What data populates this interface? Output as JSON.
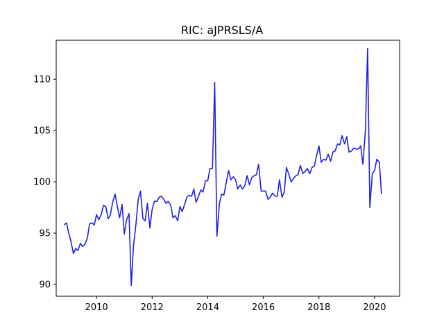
{
  "chart_data": {
    "type": "line",
    "title": "RIC: aJPRSLS/A",
    "xlabel": "",
    "ylabel": "",
    "xlim": [
      2008.55,
      2020.9
    ],
    "ylim": [
      88.85,
      113.8
    ],
    "xticks": [
      2010,
      2012,
      2014,
      2016,
      2018,
      2020
    ],
    "yticks": [
      90,
      95,
      100,
      105,
      110
    ],
    "grid": false,
    "series": [
      {
        "color": "#1f1fe6",
        "x": [
          2008.83,
          2008.92,
          2009.0,
          2009.08,
          2009.17,
          2009.25,
          2009.33,
          2009.42,
          2009.5,
          2009.58,
          2009.67,
          2009.75,
          2009.83,
          2009.92,
          2010.0,
          2010.08,
          2010.17,
          2010.25,
          2010.33,
          2010.42,
          2010.5,
          2010.58,
          2010.67,
          2010.75,
          2010.83,
          2010.92,
          2011.0,
          2011.08,
          2011.17,
          2011.25,
          2011.33,
          2011.42,
          2011.5,
          2011.58,
          2011.67,
          2011.75,
          2011.83,
          2011.92,
          2012.0,
          2012.08,
          2012.17,
          2012.25,
          2012.33,
          2012.42,
          2012.5,
          2012.58,
          2012.67,
          2012.75,
          2012.83,
          2012.92,
          2013.0,
          2013.08,
          2013.17,
          2013.25,
          2013.33,
          2013.42,
          2013.5,
          2013.58,
          2013.67,
          2013.75,
          2013.83,
          2013.92,
          2014.0,
          2014.08,
          2014.17,
          2014.25,
          2014.33,
          2014.42,
          2014.5,
          2014.58,
          2014.67,
          2014.75,
          2014.83,
          2014.92,
          2015.0,
          2015.08,
          2015.17,
          2015.25,
          2015.33,
          2015.42,
          2015.5,
          2015.58,
          2015.67,
          2015.75,
          2015.83,
          2015.92,
          2016.0,
          2016.08,
          2016.17,
          2016.25,
          2016.33,
          2016.42,
          2016.5,
          2016.58,
          2016.67,
          2016.75,
          2016.83,
          2016.92,
          2017.0,
          2017.08,
          2017.17,
          2017.25,
          2017.33,
          2017.42,
          2017.5,
          2017.58,
          2017.67,
          2017.75,
          2017.83,
          2017.92,
          2018.0,
          2018.08,
          2018.17,
          2018.25,
          2018.33,
          2018.42,
          2018.5,
          2018.58,
          2018.67,
          2018.75,
          2018.83,
          2018.92,
          2019.0,
          2019.08,
          2019.17,
          2019.25,
          2019.33,
          2019.42,
          2019.5,
          2019.58,
          2019.67,
          2019.75,
          2019.83,
          2019.92,
          2020.0,
          2020.08,
          2020.17,
          2020.25
        ],
        "y": [
          95.8,
          96.0,
          95.0,
          94.2,
          93.0,
          93.5,
          93.3,
          94.0,
          93.7,
          93.9,
          94.5,
          95.9,
          96.0,
          95.8,
          96.8,
          96.3,
          96.8,
          97.7,
          97.6,
          96.4,
          96.8,
          98.0,
          98.8,
          97.6,
          96.5,
          97.8,
          94.9,
          96.3,
          96.9,
          89.9,
          93.8,
          95.9,
          98.3,
          99.1,
          96.4,
          96.2,
          97.9,
          95.5,
          97.3,
          98.1,
          98.1,
          98.5,
          98.6,
          98.3,
          97.9,
          98.1,
          97.7,
          96.5,
          96.7,
          96.2,
          97.6,
          97.1,
          97.8,
          98.5,
          98.7,
          98.6,
          99.3,
          98.0,
          98.6,
          99.2,
          99.0,
          100.1,
          100.1,
          101.3,
          101.3,
          109.7,
          94.7,
          97.9,
          98.8,
          98.7,
          100.0,
          101.1,
          100.2,
          100.5,
          100.2,
          99.3,
          99.7,
          99.3,
          99.6,
          100.6,
          99.7,
          100.4,
          100.6,
          100.7,
          101.7,
          99.1,
          99.1,
          99.1,
          98.3,
          98.5,
          98.9,
          98.6,
          98.6,
          100.2,
          98.5,
          99.0,
          101.4,
          100.7,
          100.0,
          100.3,
          100.6,
          100.7,
          101.6,
          100.8,
          101.0,
          101.3,
          100.8,
          101.4,
          101.5,
          102.6,
          103.5,
          101.9,
          102.2,
          102.1,
          102.7,
          102.0,
          102.9,
          103.0,
          103.7,
          103.6,
          104.5,
          103.7,
          104.4,
          102.9,
          103.0,
          103.3,
          103.2,
          103.2,
          103.5,
          101.7,
          105.0,
          113.0,
          97.5,
          100.8,
          101.1,
          102.2,
          101.9,
          98.8
        ]
      }
    ]
  }
}
